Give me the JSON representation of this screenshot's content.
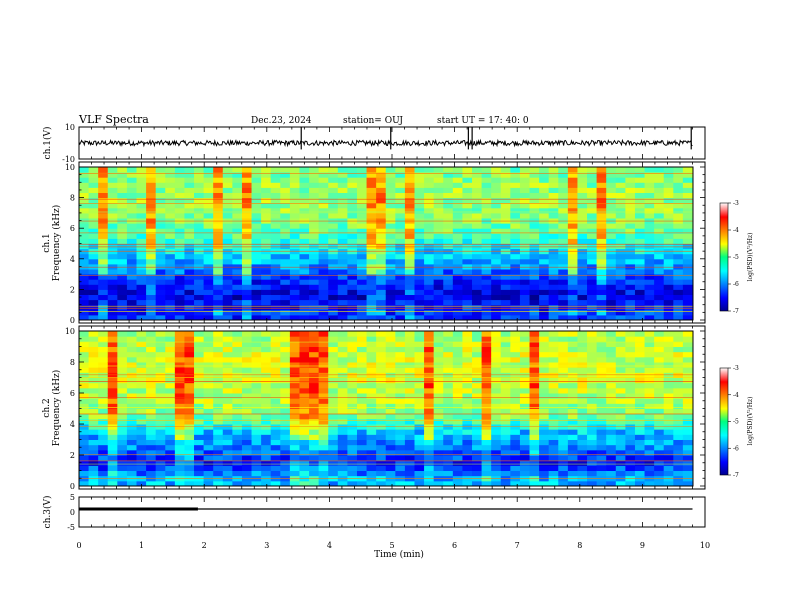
{
  "chart_data": {
    "type": "heatmap",
    "header": {
      "title": "VLF Spectra",
      "date": "Dec.23, 2024",
      "station": "station= OUJ",
      "start": "start  UT =   17: 40: 0"
    },
    "xaxis": {
      "label": "Time (min)",
      "range": [
        0,
        10
      ],
      "ticks": [
        "0",
        "1",
        "2",
        "3",
        "4",
        "5",
        "6",
        "7",
        "8",
        "9",
        "10"
      ]
    },
    "panels": [
      {
        "name": "ch1-waveform",
        "type": "line",
        "ylabel": "ch.1(V)",
        "ylim": [
          -10,
          10
        ],
        "yticks": [
          "10",
          "-10"
        ],
        "baseline": 0,
        "spikes_min": [
          3.55,
          4.98,
          6.22,
          6.28,
          9.78
        ]
      },
      {
        "name": "ch1-spectrogram",
        "type": "heatmap",
        "ylabel": "ch.1\nFrequency (kHz)",
        "ylabel_lines": [
          "ch.1",
          "Frequency (kHz)"
        ],
        "ylim": [
          0,
          10
        ],
        "yticks": [
          "0",
          "2",
          "4",
          "6",
          "8",
          "10"
        ],
        "colorbar": {
          "label": "log(PSD)(V²/Hz)",
          "range": [
            -7,
            -3
          ],
          "ticks": [
            "-3",
            "-4",
            "-5",
            "-6",
            "-7"
          ]
        },
        "intensity_profile": [
          {
            "freq_khz": 0.5,
            "log_psd": -6.3
          },
          {
            "freq_khz": 1.5,
            "log_psd": -6.6
          },
          {
            "freq_khz": 2.5,
            "log_psd": -6.4
          },
          {
            "freq_khz": 3.5,
            "log_psd": -5.9
          },
          {
            "freq_khz": 4.5,
            "log_psd": -5.6
          },
          {
            "freq_khz": 5.5,
            "log_psd": -5.2
          },
          {
            "freq_khz": 6.5,
            "log_psd": -5.0
          },
          {
            "freq_khz": 7.5,
            "log_psd": -4.9
          },
          {
            "freq_khz": 8.5,
            "log_psd": -4.9
          },
          {
            "freq_khz": 9.5,
            "log_psd": -5.0
          }
        ]
      },
      {
        "name": "ch2-spectrogram",
        "type": "heatmap",
        "ylabel": "ch.2\nFrequency (kHz)",
        "ylabel_lines": [
          "ch.2",
          "Frequency (kHz)"
        ],
        "ylim": [
          0,
          10
        ],
        "yticks": [
          "0",
          "2",
          "4",
          "6",
          "8",
          "10"
        ],
        "colorbar": {
          "label": "log(PSD)(V²/Hz)",
          "range": [
            -7,
            -3
          ],
          "ticks": [
            "-3",
            "-4",
            "-5",
            "-6",
            "-7"
          ]
        },
        "intensity_profile": [
          {
            "freq_khz": 0.5,
            "log_psd": -5.8
          },
          {
            "freq_khz": 1.5,
            "log_psd": -6.4
          },
          {
            "freq_khz": 2.5,
            "log_psd": -6.0
          },
          {
            "freq_khz": 3.5,
            "log_psd": -5.7
          },
          {
            "freq_khz": 4.5,
            "log_psd": -5.0
          },
          {
            "freq_khz": 5.5,
            "log_psd": -4.8
          },
          {
            "freq_khz": 6.5,
            "log_psd": -4.7
          },
          {
            "freq_khz": 7.5,
            "log_psd": -4.7
          },
          {
            "freq_khz": 8.5,
            "log_psd": -4.7
          },
          {
            "freq_khz": 9.5,
            "log_psd": -4.8
          }
        ]
      },
      {
        "name": "ch3-waveform",
        "type": "line",
        "ylabel": "ch.3(V)",
        "ylim": [
          -5,
          5
        ],
        "yticks": [
          "5",
          "0",
          "-5"
        ],
        "segments": [
          {
            "x": [
              0,
              1.9
            ],
            "y": 1.0,
            "weight": "thick"
          },
          {
            "x": [
              1.9,
              9.8
            ],
            "y": 1.0,
            "weight": "thin"
          }
        ]
      }
    ]
  }
}
